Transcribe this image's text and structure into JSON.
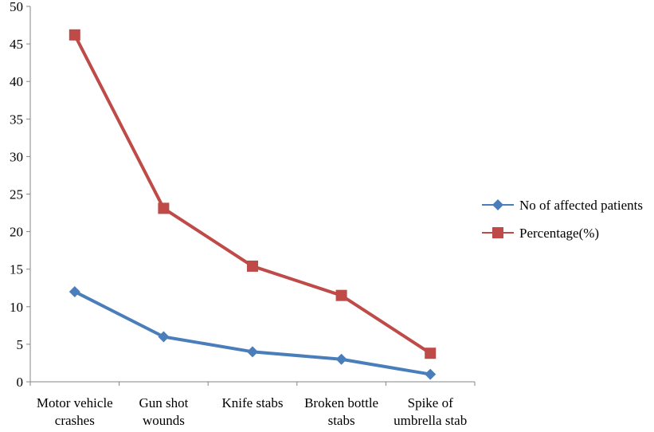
{
  "chart_data": {
    "type": "line",
    "categories": [
      [
        "Motor vehicle",
        "crashes"
      ],
      [
        "Gun shot",
        "wounds"
      ],
      [
        "Knife stabs"
      ],
      [
        "Broken bottle",
        "stabs"
      ],
      [
        "Spike of",
        "umbrella stab"
      ]
    ],
    "series": [
      {
        "name": "No of affected patients",
        "values": [
          12,
          6,
          4,
          3,
          1
        ],
        "color": "#4a7ebb",
        "marker": "diamond"
      },
      {
        "name": "Percentage(%)",
        "values": [
          46.2,
          23.1,
          15.4,
          11.5,
          3.8
        ],
        "color": "#be4b48",
        "marker": "square"
      }
    ],
    "ylim": [
      0,
      50
    ],
    "yticks": [
      0,
      5,
      10,
      15,
      20,
      25,
      30,
      35,
      40,
      45,
      50
    ],
    "grid": false,
    "legend": "right"
  }
}
